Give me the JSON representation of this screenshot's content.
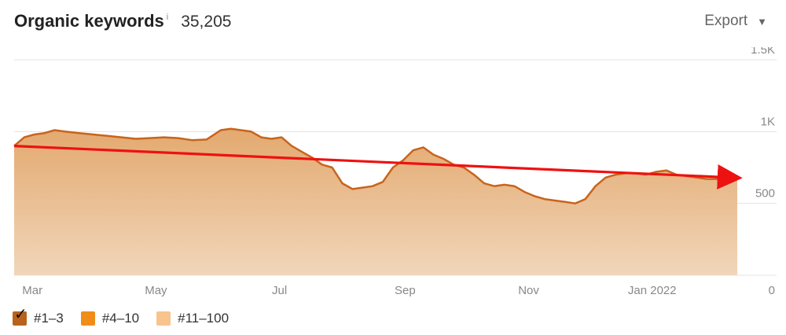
{
  "header": {
    "title": "Organic keywords",
    "info": "i",
    "total": "35,205",
    "export_label": "Export",
    "export_icon": "triangle-down-icon"
  },
  "legend": {
    "items": [
      {
        "label": "#1–3",
        "color": "#b8621b",
        "checked": true
      },
      {
        "label": "#4–10",
        "color": "#f08c1a",
        "checked": false
      },
      {
        "label": "#11–100",
        "color": "#f6c48c",
        "checked": false
      }
    ]
  },
  "colors": {
    "line": "#c8641c",
    "fill_top": "#e3a96f",
    "fill_bottom": "#f1d6ba",
    "arrow": "#ee1111",
    "grid": "#e3e3e3"
  },
  "chart_data": {
    "type": "area",
    "title": "Organic keywords",
    "x_tick_labels": [
      "Mar",
      "May",
      "Jul",
      "Sep",
      "Nov",
      "Jan 2022"
    ],
    "y_tick_labels": [
      "0",
      "500",
      "1K",
      "1.5K"
    ],
    "ylim": [
      0,
      1500
    ],
    "grid": true,
    "legend_position": "bottom-left",
    "series": [
      {
        "x": [
          "2021-02-20",
          "2021-02-25",
          "2021-03-02",
          "2021-03-07",
          "2021-03-12",
          "2021-03-17",
          "2021-03-24",
          "2021-03-31",
          "2021-04-07",
          "2021-04-14",
          "2021-04-21",
          "2021-04-28",
          "2021-05-05",
          "2021-05-12",
          "2021-05-19",
          "2021-05-26",
          "2021-06-02",
          "2021-06-07",
          "2021-06-12",
          "2021-06-17",
          "2021-06-22",
          "2021-06-27",
          "2021-07-02",
          "2021-07-07",
          "2021-07-12",
          "2021-07-17",
          "2021-07-22",
          "2021-07-27",
          "2021-08-01",
          "2021-08-06",
          "2021-08-11",
          "2021-08-16",
          "2021-08-21",
          "2021-08-26",
          "2021-08-31",
          "2021-09-05",
          "2021-09-10",
          "2021-09-15",
          "2021-09-20",
          "2021-09-25",
          "2021-09-30",
          "2021-10-05",
          "2021-10-10",
          "2021-10-15",
          "2021-10-20",
          "2021-10-25",
          "2021-10-30",
          "2021-11-04",
          "2021-11-09",
          "2021-11-14",
          "2021-11-19",
          "2021-11-24",
          "2021-11-29",
          "2021-12-04",
          "2021-12-09",
          "2021-12-14",
          "2021-12-19",
          "2021-12-24",
          "2021-12-29",
          "2022-01-03",
          "2022-01-08",
          "2022-01-13",
          "2022-01-18",
          "2022-01-23",
          "2022-01-28",
          "2022-02-02",
          "2022-02-07",
          "2022-02-12"
        ],
        "values": [
          900,
          960,
          980,
          990,
          1010,
          1000,
          990,
          980,
          970,
          960,
          950,
          955,
          960,
          955,
          940,
          945,
          1010,
          1020,
          1010,
          1000,
          960,
          950,
          960,
          900,
          860,
          820,
          770,
          750,
          640,
          600,
          610,
          620,
          650,
          750,
          800,
          870,
          890,
          840,
          810,
          770,
          750,
          700,
          640,
          620,
          630,
          620,
          580,
          550,
          530,
          520,
          510,
          500,
          530,
          620,
          680,
          700,
          710,
          710,
          700,
          720,
          730,
          700,
          690,
          680,
          670,
          670,
          680,
          680
        ]
      }
    ],
    "annotations": [
      {
        "type": "arrow",
        "color": "red",
        "from": {
          "x": "2021-02-20",
          "y": 900
        },
        "to": {
          "x": "2022-02-12",
          "y": 680
        }
      }
    ]
  }
}
